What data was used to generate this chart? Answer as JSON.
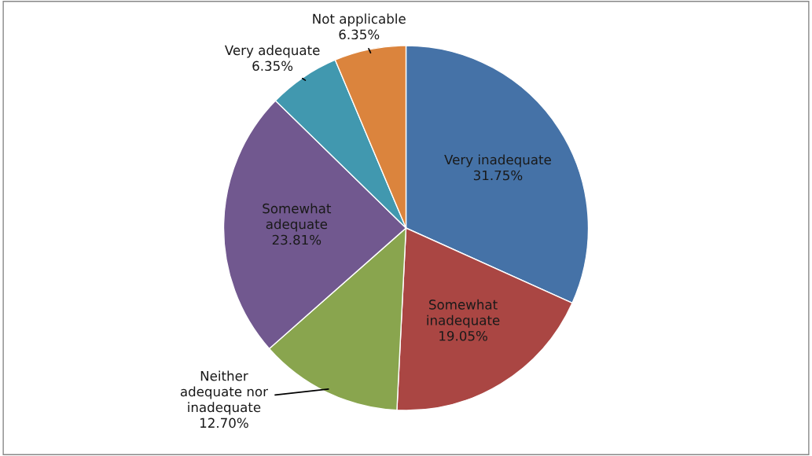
{
  "chart_data": {
    "type": "pie",
    "categories": [
      "Very inadequate",
      "Somewhat inadequate",
      "Neither adequate nor inadequate",
      "Somewhat adequate",
      "Very adequate",
      "Not applicable"
    ],
    "values": [
      31.75,
      19.05,
      12.7,
      23.81,
      6.35,
      6.35
    ],
    "value_labels": [
      "31.75%",
      "19.05%",
      "12.70%",
      "23.81%",
      "6.35%",
      "6.35%"
    ],
    "colors": [
      "#4572a7",
      "#aa4643",
      "#89a54e",
      "#71588f",
      "#4198af",
      "#db843d"
    ]
  }
}
